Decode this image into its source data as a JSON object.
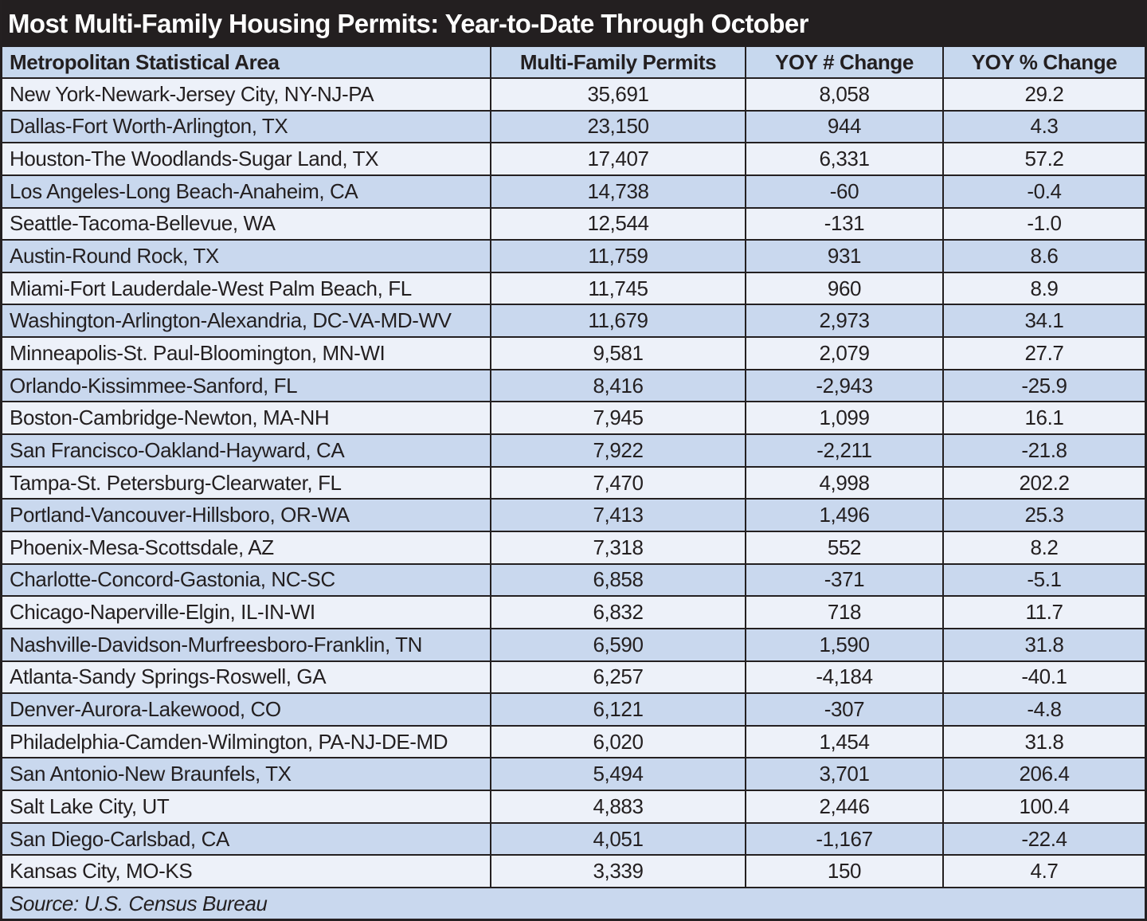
{
  "title": "Most Multi-Family Housing Permits: Year-to-Date Through October",
  "source_note": "Source: U.S. Census Bureau",
  "colors": {
    "title_bar_bg": "#231f20",
    "title_text": "#ffffff",
    "header_bg": "#c7d8ee",
    "row_light": "#edf1f9",
    "row_medium": "#c9d8ee",
    "border": "#242021",
    "body_text": "#231f20"
  },
  "chart_data": {
    "type": "table",
    "title": "Most Multi-Family Housing Permits: Year-to-Date Through October",
    "columns": [
      "Metropolitan Statistical Area",
      "Multi-Family Permits",
      "YOY # Change",
      "YOY % Change"
    ],
    "rows": [
      [
        "New York-Newark-Jersey City, NY-NJ-PA",
        "35,691",
        "8,058",
        "29.2"
      ],
      [
        "Dallas-Fort Worth-Arlington, TX",
        "23,150",
        "944",
        "4.3"
      ],
      [
        "Houston-The Woodlands-Sugar Land, TX",
        "17,407",
        "6,331",
        "57.2"
      ],
      [
        "Los Angeles-Long Beach-Anaheim, CA",
        "14,738",
        "-60",
        "-0.4"
      ],
      [
        "Seattle-Tacoma-Bellevue, WA",
        "12,544",
        "-131",
        "-1.0"
      ],
      [
        "Austin-Round Rock, TX",
        "11,759",
        "931",
        "8.6"
      ],
      [
        "Miami-Fort Lauderdale-West Palm Beach, FL",
        "11,745",
        "960",
        "8.9"
      ],
      [
        "Washington-Arlington-Alexandria, DC-VA-MD-WV",
        "11,679",
        "2,973",
        "34.1"
      ],
      [
        "Minneapolis-St. Paul-Bloomington, MN-WI",
        "9,581",
        "2,079",
        "27.7"
      ],
      [
        "Orlando-Kissimmee-Sanford, FL",
        "8,416",
        "-2,943",
        "-25.9"
      ],
      [
        "Boston-Cambridge-Newton, MA-NH",
        "7,945",
        "1,099",
        "16.1"
      ],
      [
        "San Francisco-Oakland-Hayward, CA",
        "7,922",
        "-2,211",
        "-21.8"
      ],
      [
        "Tampa-St. Petersburg-Clearwater, FL",
        "7,470",
        "4,998",
        "202.2"
      ],
      [
        "Portland-Vancouver-Hillsboro, OR-WA",
        "7,413",
        "1,496",
        "25.3"
      ],
      [
        "Phoenix-Mesa-Scottsdale, AZ",
        "7,318",
        "552",
        "8.2"
      ],
      [
        "Charlotte-Concord-Gastonia, NC-SC",
        "6,858",
        "-371",
        "-5.1"
      ],
      [
        "Chicago-Naperville-Elgin, IL-IN-WI",
        "6,832",
        "718",
        "11.7"
      ],
      [
        "Nashville-Davidson-Murfreesboro-Franklin, TN",
        "6,590",
        "1,590",
        "31.8"
      ],
      [
        "Atlanta-Sandy Springs-Roswell, GA",
        "6,257",
        "-4,184",
        "-40.1"
      ],
      [
        "Denver-Aurora-Lakewood, CO",
        "6,121",
        "-307",
        "-4.8"
      ],
      [
        "Philadelphia-Camden-Wilmington, PA-NJ-DE-MD",
        "6,020",
        "1,454",
        "31.8"
      ],
      [
        "San Antonio-New Braunfels, TX",
        "5,494",
        "3,701",
        "206.4"
      ],
      [
        "Salt Lake City, UT",
        "4,883",
        "2,446",
        "100.4"
      ],
      [
        "San Diego-Carlsbad, CA",
        "4,051",
        "-1,167",
        "-22.4"
      ],
      [
        "Kansas City, MO-KS",
        "3,339",
        "150",
        "4.7"
      ]
    ],
    "source": "Source: U.S. Census Bureau",
    "layout_hints": {
      "zebra_striping": true,
      "first_column_align": "left",
      "numeric_columns_align": "center"
    }
  }
}
